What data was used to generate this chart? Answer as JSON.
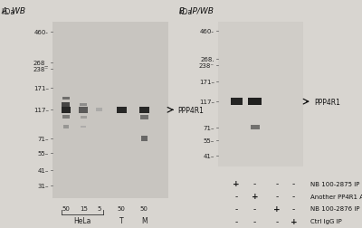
{
  "fig_bg": "#d8d5d0",
  "panel_a_bg": "#c8c5c0",
  "panel_b_bg": "#d0cdc8",
  "title_a": "A. WB",
  "title_b": "B. IP/WB",
  "label_ppp4r1": "PPP4R1",
  "kda_vals_a": [
    460,
    268,
    238,
    171,
    117,
    71,
    55,
    41,
    31
  ],
  "kda_txt_a": [
    "460-",
    "268_",
    "238⁻",
    "171–",
    "117–",
    "71–",
    "55–",
    "41–",
    "31–"
  ],
  "kda_vals_b": [
    460,
    268,
    238,
    171,
    117,
    71,
    55,
    41
  ],
  "kda_txt_b": [
    "460-",
    "268.",
    "238⁻",
    "171–",
    "117–",
    "71–",
    "55–",
    "41–"
  ],
  "lane_labels_a": [
    "50",
    "15",
    "5",
    "50",
    "50"
  ],
  "group_labels_a": [
    "HeLa",
    "T",
    "M"
  ],
  "legend_labels": [
    "NB 100-2875 IP",
    "Another PP4R1 Ab",
    "NB 100-2876 IP",
    "Ctrl IgG IP"
  ],
  "sym_data": [
    [
      "+",
      "-",
      "-",
      "-"
    ],
    [
      "-",
      "+",
      "-",
      "-"
    ],
    [
      "-",
      "-",
      "+",
      "-"
    ],
    [
      "-",
      "-",
      "-",
      "+"
    ]
  ]
}
